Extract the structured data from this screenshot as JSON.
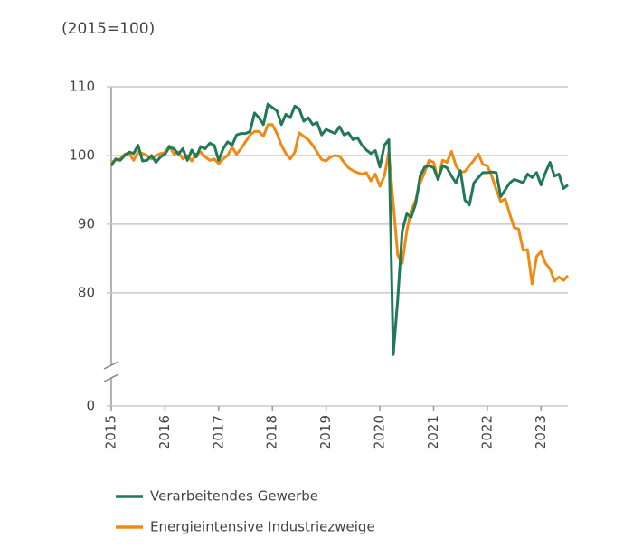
{
  "chart_data": {
    "type": "line",
    "title": "(2015=100)",
    "x": [
      2015,
      2015.083,
      2015.167,
      2015.25,
      2015.333,
      2015.417,
      2015.5,
      2015.583,
      2015.667,
      2015.75,
      2015.833,
      2015.917,
      2016,
      2016.083,
      2016.167,
      2016.25,
      2016.333,
      2016.417,
      2016.5,
      2016.583,
      2016.667,
      2016.75,
      2016.833,
      2016.917,
      2017,
      2017.083,
      2017.167,
      2017.25,
      2017.333,
      2017.417,
      2017.5,
      2017.583,
      2017.667,
      2017.75,
      2017.833,
      2017.917,
      2018,
      2018.083,
      2018.167,
      2018.25,
      2018.333,
      2018.417,
      2018.5,
      2018.583,
      2018.667,
      2018.75,
      2018.833,
      2018.917,
      2019,
      2019.083,
      2019.167,
      2019.25,
      2019.333,
      2019.417,
      2019.5,
      2019.583,
      2019.667,
      2019.75,
      2019.833,
      2019.917,
      2020,
      2020.083,
      2020.167,
      2020.25,
      2020.333,
      2020.417,
      2020.5,
      2020.583,
      2020.667,
      2020.75,
      2020.833,
      2020.917,
      2021,
      2021.083,
      2021.167,
      2021.25,
      2021.333,
      2021.417,
      2021.5,
      2021.583,
      2021.667,
      2021.75,
      2021.833,
      2021.917,
      2022,
      2022.083,
      2022.167,
      2022.25,
      2022.333,
      2022.417,
      2022.5,
      2022.583,
      2022.667,
      2022.75,
      2022.833,
      2022.917,
      2023,
      2023.083,
      2023.167,
      2023.25,
      2023.333,
      2023.417,
      2023.5
    ],
    "series": [
      {
        "name": "Verarbeitendes Gewerbe",
        "color": "#1f7a55",
        "values": [
          98.5,
          99.5,
          99.3,
          100,
          100.5,
          100.3,
          101.5,
          99.2,
          99.3,
          100,
          99,
          99.8,
          100.2,
          101.2,
          101,
          100.2,
          101,
          99.3,
          100.8,
          99.8,
          101.3,
          101,
          101.8,
          101.5,
          99.3,
          101,
          102,
          101.5,
          103,
          103.2,
          103.2,
          103.5,
          106.2,
          105.5,
          104.5,
          107.5,
          107,
          106.5,
          104.5,
          106,
          105.5,
          107.2,
          106.8,
          105,
          105.5,
          104.5,
          104.8,
          103,
          103.8,
          103.5,
          103.2,
          104.2,
          103,
          103.3,
          102.3,
          102.6,
          101.5,
          100.8,
          100.3,
          100.7,
          98.3,
          101.5,
          102.3,
          71,
          79,
          89,
          91.5,
          91,
          93,
          97,
          98.3,
          98.5,
          98.2,
          96.5,
          98.5,
          98.2,
          97,
          96,
          97.8,
          93.5,
          92.8,
          96,
          96.8,
          97.5,
          97.5,
          97.6,
          97.5,
          94,
          95,
          96,
          96.5,
          96.3,
          96,
          97.3,
          96.8,
          97.5,
          95.7,
          97.5,
          99,
          97,
          97.3,
          95.2,
          95.7
        ]
      },
      {
        "name": "Energieintensive Industriezweige",
        "color": "#f08a12",
        "values": [
          99,
          99.3,
          99.5,
          100.2,
          100.3,
          99.3,
          100.5,
          100.3,
          100,
          99.5,
          100,
          100.3,
          100.4,
          101.4,
          100.2,
          100.5,
          99.5,
          100,
          99.2,
          100.2,
          100.5,
          99.8,
          99.3,
          99.5,
          98.8,
          99.5,
          100,
          101.2,
          100.2,
          101,
          102,
          103,
          103.5,
          103.5,
          102.8,
          104.5,
          104.5,
          103.2,
          101.5,
          100.3,
          99.5,
          100.5,
          103.3,
          102.8,
          102.3,
          101.5,
          100.5,
          99.4,
          99.2,
          99.8,
          100,
          99.9,
          99,
          98.2,
          97.8,
          97.5,
          97.3,
          97.5,
          96.3,
          97.3,
          95.5,
          97,
          100.5,
          93,
          85.5,
          84.3,
          89,
          92,
          93.5,
          96,
          97.5,
          99.3,
          99,
          96.5,
          99.3,
          99,
          100.6,
          98.5,
          97.5,
          97.7,
          98.5,
          99.3,
          100.2,
          98.7,
          98.5,
          97,
          95,
          93.3,
          93.7,
          91.5,
          89.5,
          89.3,
          86.2,
          86.3,
          81.3,
          85.3,
          86,
          84.3,
          83.5,
          81.7,
          82.3,
          81.8,
          82.5
        ]
      }
    ],
    "xlim": [
      2015,
      2023.5
    ],
    "xticks": [
      2015,
      2016,
      2017,
      2018,
      2019,
      2020,
      2021,
      2022,
      2023
    ],
    "ylim": [
      0,
      110
    ],
    "y_break": [
      0,
      68
    ],
    "yticks": [
      0,
      80,
      90,
      100,
      110
    ],
    "grid": true
  }
}
